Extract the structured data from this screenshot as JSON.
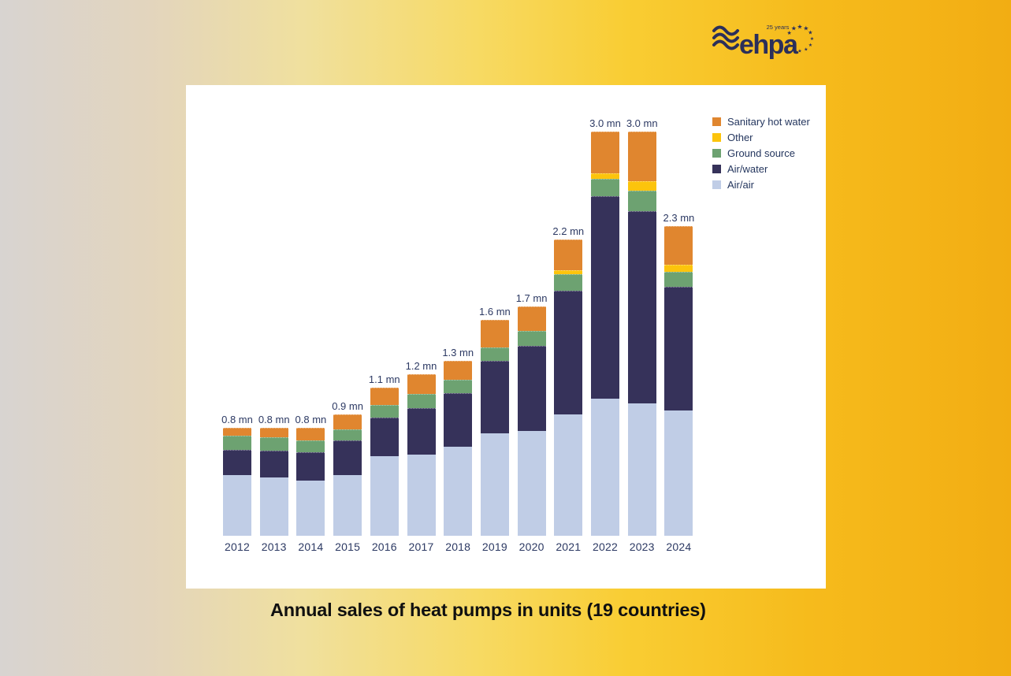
{
  "logo": {
    "brand": "ehpa",
    "badge": "25 years",
    "color": "#2b2f5a"
  },
  "caption": {
    "text": "Annual sales of heat pumps in units (19 countries)"
  },
  "legend": {
    "items": [
      {
        "label": "Sanitary hot water",
        "color": "#e0862f"
      },
      {
        "label": "Other",
        "color": "#fcc40c"
      },
      {
        "label": "Ground source",
        "color": "#6da271"
      },
      {
        "label": "Air/water",
        "color": "#36325a"
      },
      {
        "label": "Air/air",
        "color": "#c0cde6"
      }
    ]
  },
  "chart_data": {
    "type": "bar",
    "stacked": true,
    "title": "Annual sales of heat pumps in units (19 countries)",
    "unit": "million units",
    "grid": false,
    "axis_lines": false,
    "legend_position": "top-right",
    "categories": [
      "2012",
      "2013",
      "2014",
      "2015",
      "2016",
      "2017",
      "2018",
      "2019",
      "2020",
      "2021",
      "2022",
      "2023",
      "2024"
    ],
    "bar_labels": [
      "0.8 mn",
      "0.8 mn",
      "0.8 mn",
      "0.9 mn",
      "1.1 mn",
      "1.2 mn",
      "1.3 mn",
      "1.6 mn",
      "1.7 mn",
      "2.2 mn",
      "3.0 mn",
      "3.0 mn",
      "2.3 mn"
    ],
    "totals_mn": [
      0.8,
      0.8,
      0.8,
      0.9,
      1.1,
      1.2,
      1.3,
      1.6,
      1.7,
      2.2,
      3.0,
      3.0,
      2.3
    ],
    "series": [
      {
        "name": "Air/air",
        "color": "#c0cde6",
        "values": [
          0.45,
          0.43,
          0.41,
          0.45,
          0.59,
          0.6,
          0.66,
          0.76,
          0.78,
          0.9,
          1.02,
          0.98,
          0.93
        ]
      },
      {
        "name": "Air/water",
        "color": "#36325a",
        "values": [
          0.19,
          0.2,
          0.21,
          0.26,
          0.29,
          0.35,
          0.4,
          0.54,
          0.63,
          0.92,
          1.5,
          1.43,
          0.92
        ]
      },
      {
        "name": "Ground source",
        "color": "#6da271",
        "values": [
          0.1,
          0.1,
          0.09,
          0.08,
          0.09,
          0.1,
          0.1,
          0.1,
          0.11,
          0.12,
          0.13,
          0.15,
          0.11
        ]
      },
      {
        "name": "Other",
        "color": "#fcc40c",
        "values": [
          0,
          0,
          0,
          0,
          0,
          0,
          0,
          0,
          0,
          0.03,
          0.04,
          0.07,
          0.05
        ]
      },
      {
        "name": "Sanitary hot water",
        "color": "#e0862f",
        "values": [
          0.06,
          0.07,
          0.09,
          0.11,
          0.13,
          0.15,
          0.14,
          0.2,
          0.18,
          0.23,
          0.31,
          0.37,
          0.29
        ]
      }
    ]
  }
}
